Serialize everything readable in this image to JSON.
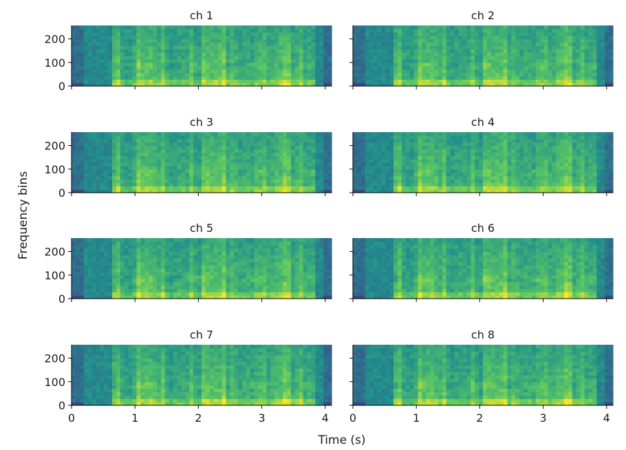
{
  "figure": {
    "xlabel": "Time (s)",
    "ylabel": "Frequency bins"
  },
  "colors": {
    "colormap": "viridis",
    "background": "#2a8a8a",
    "axis": "#000000"
  },
  "chart_data": [
    {
      "type": "heatmap",
      "title": "ch 1",
      "xlim": [
        0,
        4.1
      ],
      "ylim": [
        0,
        257
      ],
      "xticks": [
        0,
        1,
        2,
        3,
        4
      ],
      "yticks": [
        0,
        100,
        200
      ],
      "xlabel": "",
      "ylabel": ""
    },
    {
      "type": "heatmap",
      "title": "ch 2",
      "xlim": [
        0,
        4.1
      ],
      "ylim": [
        0,
        257
      ],
      "xticks": [
        0,
        1,
        2,
        3,
        4
      ],
      "yticks": [
        0,
        100,
        200
      ],
      "xlabel": "",
      "ylabel": ""
    },
    {
      "type": "heatmap",
      "title": "ch 3",
      "xlim": [
        0,
        4.1
      ],
      "ylim": [
        0,
        257
      ],
      "xticks": [
        0,
        1,
        2,
        3,
        4
      ],
      "yticks": [
        0,
        100,
        200
      ],
      "xlabel": "",
      "ylabel": ""
    },
    {
      "type": "heatmap",
      "title": "ch 4",
      "xlim": [
        0,
        4.1
      ],
      "ylim": [
        0,
        257
      ],
      "xticks": [
        0,
        1,
        2,
        3,
        4
      ],
      "yticks": [
        0,
        100,
        200
      ],
      "xlabel": "",
      "ylabel": ""
    },
    {
      "type": "heatmap",
      "title": "ch 5",
      "xlim": [
        0,
        4.1
      ],
      "ylim": [
        0,
        257
      ],
      "xticks": [
        0,
        1,
        2,
        3,
        4
      ],
      "yticks": [
        0,
        100,
        200
      ],
      "xlabel": "",
      "ylabel": ""
    },
    {
      "type": "heatmap",
      "title": "ch 6",
      "xlim": [
        0,
        4.1
      ],
      "ylim": [
        0,
        257
      ],
      "xticks": [
        0,
        1,
        2,
        3,
        4
      ],
      "yticks": [
        0,
        100,
        200
      ],
      "xlabel": "",
      "ylabel": ""
    },
    {
      "type": "heatmap",
      "title": "ch 7",
      "xlim": [
        0,
        4.1
      ],
      "ylim": [
        0,
        257
      ],
      "xticks": [
        0,
        1,
        2,
        3,
        4
      ],
      "yticks": [
        0,
        100,
        200
      ],
      "xlabel": "",
      "ylabel": ""
    },
    {
      "type": "heatmap",
      "title": "ch 8",
      "xlim": [
        0,
        4.1
      ],
      "ylim": [
        0,
        257
      ],
      "xticks": [
        0,
        1,
        2,
        3,
        4
      ],
      "yticks": [
        0,
        100,
        200
      ],
      "xlabel": "",
      "ylabel": ""
    }
  ]
}
